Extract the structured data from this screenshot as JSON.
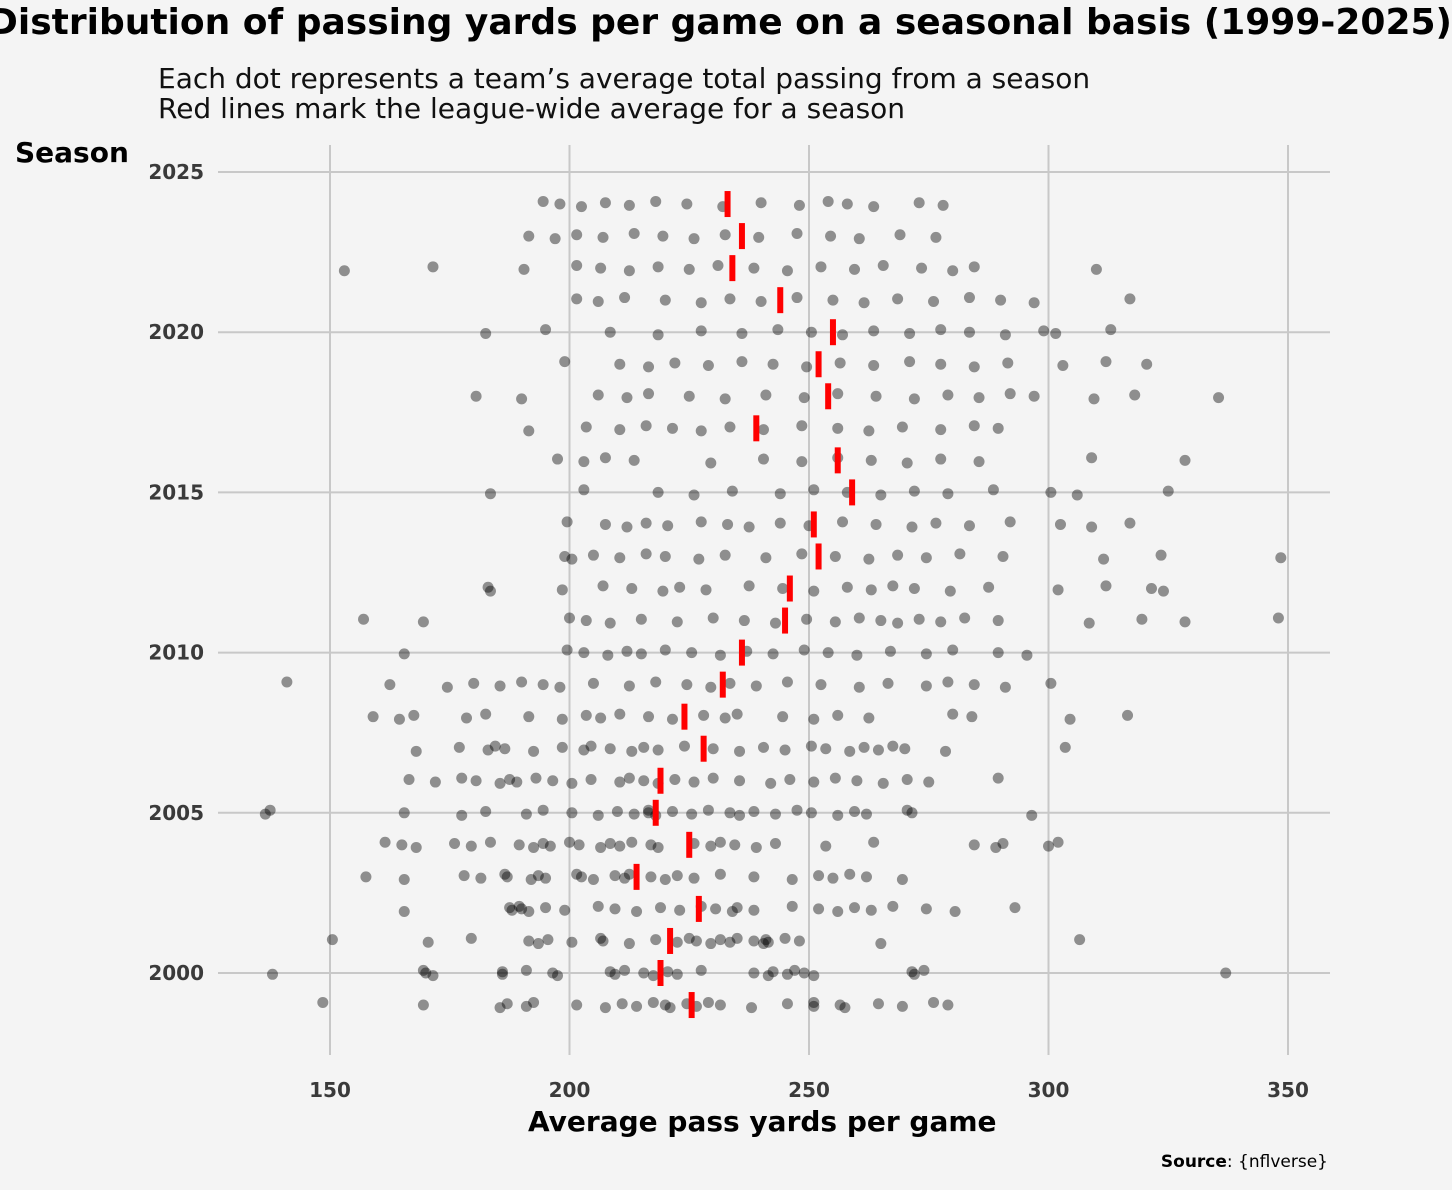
{
  "chart_data": {
    "type": "scatter",
    "title": "Distribution of passing yards per game on a seasonal basis (1999-2025)",
    "subtitle": [
      "Each dot represents a team’s average total passing from a season",
      "Red lines mark the league-wide average for a season"
    ],
    "xlabel": "Average pass yards per game",
    "ylabel": "Season",
    "caption_label": "Source",
    "caption_text": ": {nflverse}",
    "xlim": [
      125,
      358
    ],
    "ylim": [
      1997.9,
      2025.9
    ],
    "x_ticks": [
      150,
      200,
      250,
      300,
      350
    ],
    "y_ticks": [
      2000,
      2005,
      2010,
      2015,
      2020,
      2025
    ],
    "grid": "on",
    "legend": "none",
    "colors": {
      "background": "#f4f4f4",
      "grid": "#c8c8c8",
      "point": "#000000",
      "point_opacity": 0.42,
      "mean_line": "#ff0000"
    },
    "seasons": [
      1999,
      2000,
      2001,
      2002,
      2003,
      2004,
      2005,
      2006,
      2007,
      2008,
      2009,
      2010,
      2011,
      2012,
      2013,
      2014,
      2015,
      2016,
      2017,
      2018,
      2019,
      2020,
      2021,
      2022,
      2023,
      2024
    ],
    "league_averages": [
      225.5,
      219.0,
      221.0,
      227.0,
      214.0,
      225.0,
      218.0,
      219.0,
      228.0,
      224.0,
      232.0,
      236.0,
      245.0,
      246.0,
      252.0,
      251.0,
      259.0,
      256.0,
      239.0,
      254.0,
      252.0,
      255.0,
      244.0,
      234.0,
      236.0,
      233.0
    ],
    "team_values": [
      [
        148.5,
        169.5,
        185.5,
        187.0,
        191.0,
        192.5,
        201.5,
        207.5,
        211.0,
        214.0,
        217.5,
        220.0,
        221.0,
        224.5,
        226.5,
        229.0,
        231.5,
        238.0,
        245.5,
        251.0,
        251.0,
        256.5,
        257.5,
        264.5,
        269.5,
        276.0,
        279.0
      ],
      [
        138.0,
        169.5,
        170.0,
        171.5,
        186.0,
        186.0,
        191.0,
        196.5,
        197.5,
        208.5,
        209.5,
        211.5,
        215.5,
        217.5,
        220.5,
        222.5,
        227.5,
        238.5,
        241.5,
        242.5,
        245.5,
        247.0,
        249.0,
        251.0,
        271.5,
        272.0,
        274.0,
        337.0
      ],
      [
        150.5,
        170.5,
        179.5,
        191.5,
        193.5,
        195.5,
        200.5,
        206.5,
        207.0,
        212.5,
        218.0,
        222.5,
        225.0,
        226.5,
        229.5,
        231.5,
        233.5,
        235.0,
        238.5,
        240.5,
        241.0,
        241.5,
        245.0,
        248.0,
        265.0,
        306.5
      ],
      [
        165.5,
        187.5,
        188.0,
        189.5,
        190.0,
        191.5,
        195.0,
        199.0,
        206.0,
        209.5,
        214.0,
        219.0,
        223.0,
        227.5,
        230.5,
        234.0,
        235.0,
        238.5,
        246.5,
        252.0,
        256.0,
        259.5,
        263.0,
        267.5,
        274.5,
        280.5,
        293.0
      ],
      [
        157.5,
        165.5,
        178.0,
        181.5,
        186.5,
        187.0,
        192.0,
        193.5,
        195.0,
        201.5,
        202.5,
        205.0,
        209.5,
        211.5,
        212.5,
        217.0,
        220.0,
        222.5,
        226.0,
        231.5,
        238.5,
        246.5,
        252.0,
        255.0,
        258.5,
        262.0,
        269.5
      ],
      [
        161.5,
        165.0,
        168.0,
        176.0,
        179.5,
        183.5,
        189.5,
        192.5,
        194.5,
        196.0,
        200.0,
        202.0,
        206.5,
        208.5,
        210.5,
        213.0,
        217.0,
        218.5,
        226.0,
        229.5,
        231.5,
        234.5,
        239.0,
        243.0,
        253.5,
        263.5,
        284.5,
        289.0,
        290.5,
        300.0,
        302.0
      ],
      [
        136.5,
        137.5,
        165.5,
        177.5,
        182.5,
        191.0,
        194.5,
        200.5,
        206.0,
        210.0,
        213.5,
        216.5,
        216.5,
        218.0,
        221.5,
        225.5,
        229.0,
        233.5,
        235.5,
        238.5,
        243.0,
        247.5,
        250.5,
        256.0,
        259.5,
        262.0,
        270.5,
        271.5,
        296.5
      ],
      [
        166.5,
        172.0,
        177.5,
        180.5,
        185.5,
        187.5,
        189.0,
        193.0,
        196.5,
        200.5,
        204.5,
        210.5,
        212.5,
        215.5,
        218.5,
        222.0,
        226.0,
        230.0,
        235.5,
        242.0,
        246.0,
        251.0,
        255.5,
        260.0,
        265.5,
        270.5,
        275.0,
        289.5
      ],
      [
        168.0,
        177.0,
        183.0,
        184.5,
        186.5,
        192.5,
        198.5,
        203.0,
        204.5,
        208.5,
        213.0,
        215.5,
        218.5,
        224.0,
        230.0,
        235.5,
        240.5,
        245.0,
        250.5,
        253.5,
        258.5,
        261.5,
        264.5,
        267.5,
        270.0,
        278.5,
        303.5
      ],
      [
        159.0,
        164.5,
        167.5,
        178.5,
        182.5,
        191.5,
        198.5,
        203.5,
        206.5,
        210.5,
        216.5,
        221.5,
        228.0,
        232.5,
        235.0,
        244.5,
        251.0,
        256.0,
        262.5,
        280.0,
        284.0,
        304.5,
        316.5
      ],
      [
        141.0,
        162.5,
        174.5,
        180.0,
        185.5,
        190.0,
        194.5,
        198.0,
        205.0,
        212.5,
        218.0,
        224.5,
        229.5,
        233.5,
        239.0,
        245.5,
        252.5,
        260.5,
        266.5,
        274.5,
        279.0,
        284.5,
        291.0,
        300.5
      ],
      [
        165.5,
        199.5,
        203.0,
        208.0,
        212.0,
        215.0,
        220.0,
        225.5,
        231.5,
        237.0,
        242.5,
        249.0,
        254.0,
        260.0,
        267.0,
        274.5,
        280.0,
        289.5,
        295.5
      ],
      [
        157.0,
        169.5,
        200.0,
        203.5,
        208.5,
        215.0,
        222.5,
        230.0,
        236.5,
        243.0,
        249.5,
        255.5,
        260.5,
        265.0,
        268.5,
        273.0,
        277.5,
        282.5,
        289.5,
        308.5,
        319.5,
        328.5,
        348.0
      ],
      [
        183.5,
        183.0,
        198.5,
        207.0,
        213.0,
        219.5,
        223.0,
        228.5,
        237.5,
        244.5,
        251.0,
        258.0,
        263.0,
        267.5,
        272.0,
        279.5,
        287.5,
        302.0,
        312.0,
        321.5,
        324.0
      ],
      [
        199.0,
        200.5,
        205.0,
        210.5,
        216.0,
        220.0,
        227.0,
        232.5,
        241.0,
        248.5,
        255.5,
        262.5,
        268.5,
        274.5,
        281.5,
        290.5,
        311.5,
        323.5,
        348.5
      ],
      [
        199.5,
        207.5,
        212.0,
        216.0,
        220.5,
        227.5,
        233.0,
        237.5,
        244.0,
        250.0,
        257.0,
        264.0,
        271.5,
        276.5,
        283.5,
        292.0,
        302.5,
        309.0,
        317.0
      ],
      [
        183.5,
        203.0,
        218.5,
        226.0,
        234.0,
        244.0,
        251.0,
        258.0,
        265.0,
        272.0,
        279.0,
        288.5,
        300.5,
        306.0,
        325.0
      ],
      [
        197.5,
        203.0,
        207.5,
        213.5,
        229.5,
        240.5,
        248.5,
        256.0,
        263.0,
        270.5,
        277.5,
        285.5,
        309.0,
        328.5
      ],
      [
        191.5,
        203.5,
        210.5,
        216.0,
        221.5,
        227.5,
        233.5,
        240.5,
        248.5,
        256.0,
        262.5,
        269.5,
        277.5,
        284.5,
        289.5
      ],
      [
        180.5,
        190.0,
        206.0,
        212.0,
        216.5,
        225.0,
        232.5,
        241.0,
        249.0,
        256.0,
        264.0,
        272.0,
        279.0,
        285.5,
        292.0,
        297.0,
        309.5,
        318.0,
        335.5
      ],
      [
        199.0,
        210.5,
        216.5,
        222.0,
        229.0,
        236.0,
        242.5,
        249.5,
        256.5,
        263.5,
        271.0,
        277.5,
        284.5,
        291.5,
        303.0,
        312.0,
        320.5
      ],
      [
        182.5,
        195.0,
        208.5,
        218.5,
        227.5,
        236.0,
        243.5,
        250.5,
        257.0,
        263.5,
        271.0,
        277.5,
        283.5,
        291.0,
        299.0,
        301.5,
        313.0
      ],
      [
        201.5,
        206.0,
        211.5,
        220.0,
        227.5,
        233.5,
        240.0,
        247.5,
        255.0,
        261.5,
        268.5,
        276.0,
        283.5,
        290.0,
        297.0,
        317.0
      ],
      [
        153.0,
        171.5,
        190.5,
        201.5,
        206.5,
        212.5,
        218.5,
        225.0,
        231.0,
        238.5,
        245.5,
        252.5,
        259.5,
        265.5,
        273.5,
        280.0,
        284.5,
        310.0
      ],
      [
        191.5,
        197.0,
        201.5,
        207.0,
        213.5,
        219.5,
        226.0,
        232.5,
        239.5,
        247.5,
        254.5,
        260.5,
        269.0,
        276.5
      ],
      [
        194.5,
        198.0,
        202.5,
        207.5,
        212.5,
        218.0,
        224.5,
        232.0,
        240.0,
        248.0,
        254.0,
        258.0,
        263.5,
        273.0,
        278.0
      ]
    ]
  }
}
